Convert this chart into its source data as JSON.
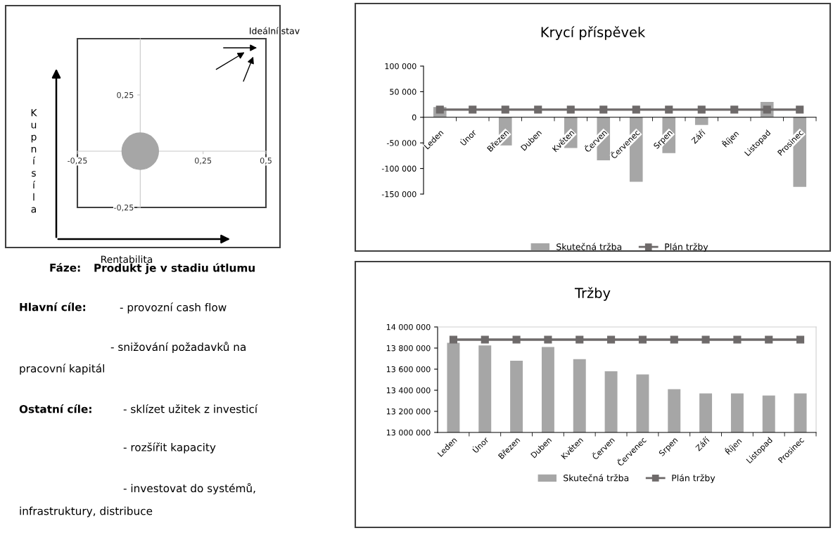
{
  "chart_data": [
    {
      "type": "bubble",
      "xlabel": "Rentabilita",
      "ylabel": "Kupnísíla",
      "annotations": [
        "Ideální stav"
      ],
      "x": [
        0
      ],
      "series": [
        {
          "color": "#a6a6a6",
          "values": [
            0
          ],
          "sizes": [
            1
          ]
        }
      ],
      "xlim": [
        -0.25,
        0.5
      ],
      "ylim": [
        -0.25,
        0.5
      ],
      "xticks": [
        {
          "value": -0.25,
          "label": "-0,25"
        },
        {
          "value": 0.25,
          "label": "0,25"
        },
        {
          "value": 0.5,
          "label": "0,5"
        }
      ],
      "yticks": [
        {
          "value": -0.25,
          "label": "-0,25"
        },
        {
          "value": 0.25,
          "label": "0,25"
        }
      ],
      "grid": false
    },
    {
      "type": "bar",
      "title": "Krycí příspěvek",
      "categories": [
        "Leden",
        "Únor",
        "Březen",
        "Duben",
        "Květen",
        "Červen",
        "Červenec",
        "Srpen",
        "Září",
        "Říjen",
        "Listopad",
        "Prosinec"
      ],
      "series": [
        {
          "name": "Skutečná tržba",
          "color": "#a6a6a6",
          "values": [
            20000,
            null,
            -55000,
            null,
            -60000,
            -84000,
            -126000,
            -70000,
            -15000,
            null,
            30000,
            -136000
          ]
        },
        {
          "name": "Plán tržby",
          "type": "line",
          "color": "#6e6a6a",
          "values": [
            15000,
            15000,
            15000,
            15000,
            15000,
            15000,
            15000,
            15000,
            15000,
            15000,
            15000,
            15000
          ]
        }
      ],
      "ylim": [
        -150000,
        100000
      ],
      "yticks": [
        {
          "value": -150000,
          "label": "-150 000"
        },
        {
          "value": -100000,
          "label": "-100 000"
        },
        {
          "value": -50000,
          "label": "-50 000"
        },
        0,
        {
          "value": 50000,
          "label": "50 000"
        },
        {
          "value": 100000,
          "label": "100 000"
        }
      ],
      "marker": "square",
      "grid": false,
      "legend": "bottom"
    },
    {
      "type": "other",
      "annotations": [
        "Fáze:",
        "Produkt je v stadiu útlumu",
        "Hlavní cíle:",
        "- provozní cash flow",
        "- snižování požadavků na",
        "pracovní kapitál",
        "Ostatní cíle:",
        "- sklízet užitek z investicí",
        "- rozšířit kapacity",
        "- investovat do systémů,",
        "infrastruktury, distribuce"
      ]
    },
    {
      "type": "bar",
      "title": "Tržby",
      "categories": [
        "Leden",
        "Únor",
        "Březen",
        "Duben",
        "Květen",
        "Červen",
        "Červenec",
        "Srpen",
        "Září",
        "Říjen",
        "Listopad",
        "Prosinec"
      ],
      "series": [
        {
          "name": "Skutečná tržba",
          "color": "#a6a6a6",
          "values": [
            13850000,
            13825000,
            13680000,
            13810000,
            13695000,
            13580000,
            13550000,
            13410000,
            13370000,
            13370000,
            13350000,
            13370000
          ]
        },
        {
          "name": "Plán tržby",
          "type": "line",
          "color": "#6e6a6a",
          "values": [
            13880000,
            13880000,
            13880000,
            13880000,
            13880000,
            13880000,
            13880000,
            13880000,
            13880000,
            13880000,
            13880000,
            13880000
          ]
        }
      ],
      "ylim": [
        13000000,
        14000000
      ],
      "yticks": [
        {
          "value": 13000000,
          "label": "13 000 000"
        },
        {
          "value": 13200000,
          "label": "13 200 000"
        },
        {
          "value": 13400000,
          "label": "13 400 000"
        },
        {
          "value": 13600000,
          "label": "13 600 000"
        },
        {
          "value": 13800000,
          "label": "13 800 000"
        },
        {
          "value": 14000000,
          "label": "14 000 000"
        }
      ],
      "marker": "square",
      "grid": false,
      "legend": "bottom"
    }
  ]
}
